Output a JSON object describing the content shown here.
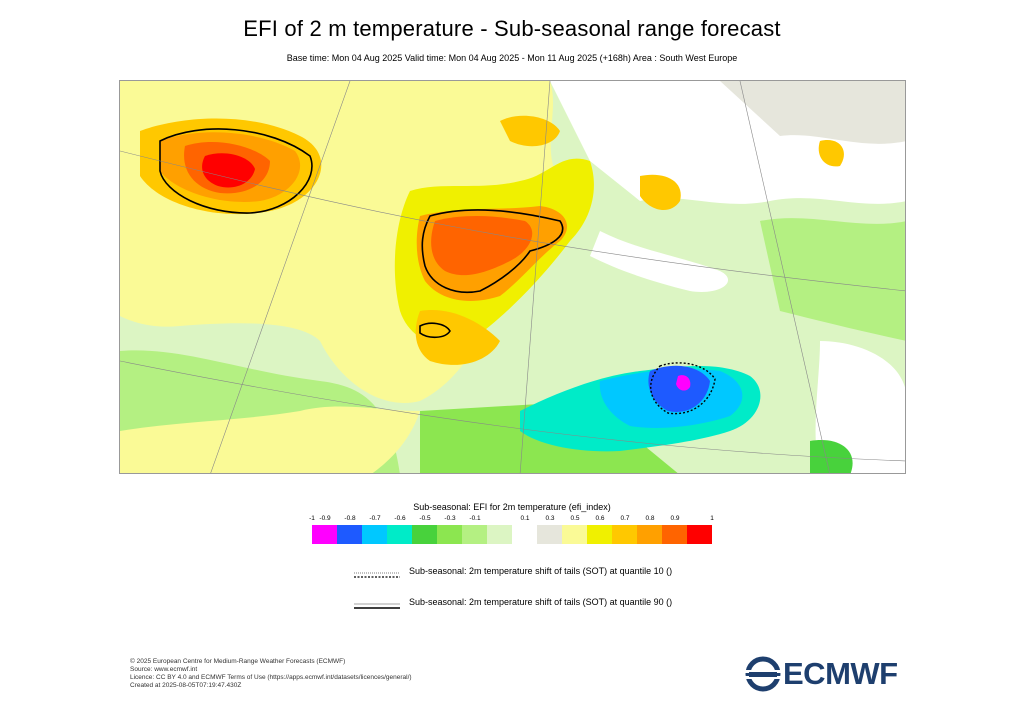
{
  "header": {
    "title": "EFI of 2 m temperature - Sub-seasonal range forecast",
    "subtitle": "Base time: Mon 04 Aug 2025 Valid time: Mon 04 Aug 2025 - Mon 11 Aug 2025 (+168h) Area : South West Europe"
  },
  "legend": {
    "title": "Sub-seasonal: EFI for 2m temperature (efi_index)",
    "ticks": [
      "-1",
      "-0.9",
      "-0.8",
      "-0.7",
      "-0.6",
      "-0.5",
      "-0.3",
      "-0.1",
      "0.1",
      "0.3",
      "0.5",
      "0.6",
      "0.7",
      "0.8",
      "0.9",
      "1"
    ],
    "colors": [
      "#ff00ff",
      "#1e5aff",
      "#00c8ff",
      "#00ebc8",
      "#48d23c",
      "#8ce650",
      "#b4f082",
      "#dcf5c3",
      "#ffffff",
      "#e6e6dc",
      "#fafa96",
      "#f0f000",
      "#ffc800",
      "#ffa000",
      "#ff6400",
      "#ff0000"
    ]
  },
  "contour_legend": {
    "q10_label": "Sub-seasonal: 2m temperature shift of tails (SOT) at quantile 10 ()",
    "q90_label": "Sub-seasonal: 2m temperature shift of tails (SOT) at quantile 90 ()"
  },
  "footer": {
    "line1": "© 2025 European Centre for Medium-Range Weather Forecasts (ECMWF)",
    "line2": "Source: www.ecmwf.int",
    "line3": "Licence: CC BY 4.0 and ECMWF Terms of Use (https://apps.ecmwf.int/datasets/licences/general/)",
    "line4": "Created at 2025-08-05T07:19:47.430Z"
  },
  "logo": {
    "text": "ECMWF",
    "color": "#1e3f6e"
  }
}
